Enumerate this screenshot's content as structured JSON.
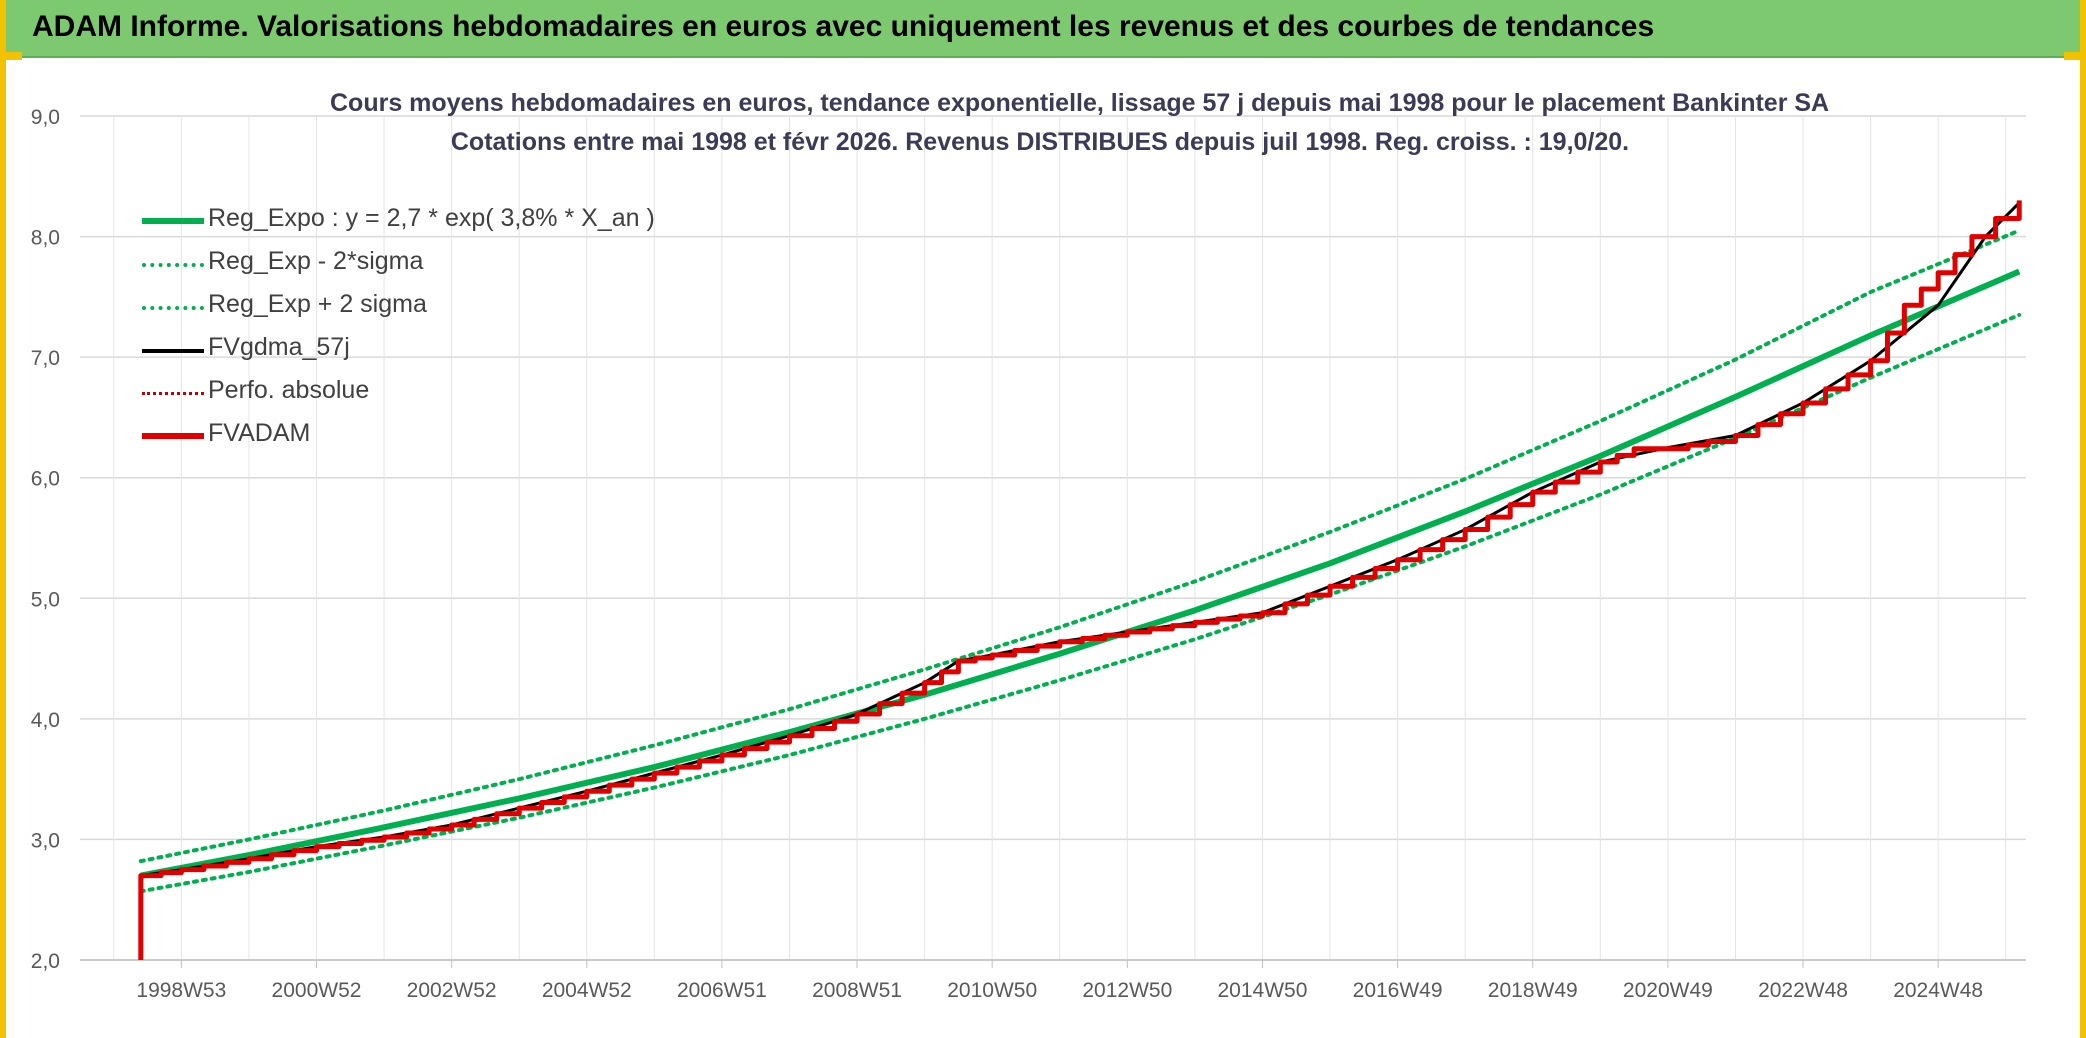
{
  "header": {
    "title": "ADAM Informe. Valorisations hebdomadaires en euros avec uniquement les revenus et des courbes de tendances"
  },
  "chart_data": {
    "type": "line",
    "title": "Cours moyens hebdomadaires en euros, tendance exponentielle, lissage 57 j depuis mai 1998 pour le placement Bankinter SA",
    "subtitle": "Cotations entre mai 1998 et févr 2026. Revenus DISTRIBUES depuis juil 1998. Reg. croiss. : 19,0/20.",
    "xlabel": "",
    "ylabel": "",
    "ylim": [
      2.0,
      9.0
    ],
    "xlim": [
      1997.5,
      2026.3
    ],
    "y_ticks": [
      "2,0",
      "3,0",
      "4,0",
      "5,0",
      "6,0",
      "7,0",
      "8,0",
      "9,0"
    ],
    "x_ticks": [
      {
        "label": "1998W53",
        "x": 1999.0
      },
      {
        "label": "2000W52",
        "x": 2001.0
      },
      {
        "label": "2002W52",
        "x": 2003.0
      },
      {
        "label": "2004W52",
        "x": 2005.0
      },
      {
        "label": "2006W51",
        "x": 2007.0
      },
      {
        "label": "2008W51",
        "x": 2009.0
      },
      {
        "label": "2010W50",
        "x": 2011.0
      },
      {
        "label": "2012W50",
        "x": 2013.0
      },
      {
        "label": "2014W50",
        "x": 2015.0
      },
      {
        "label": "2016W49",
        "x": 2017.0
      },
      {
        "label": "2018W49",
        "x": 2019.0
      },
      {
        "label": "2020W49",
        "x": 2021.0
      },
      {
        "label": "2022W48",
        "x": 2023.0
      },
      {
        "label": "2024W48",
        "x": 2025.0
      }
    ],
    "grid": true,
    "legend_position": "top-left",
    "series": [
      {
        "name": "Reg_Expo : y = 2,7 * exp( 3,8% *  X_an )",
        "color": "#00b050",
        "style": "solid-thick",
        "x": [
          1998.4,
          2000.0,
          2002.0,
          2004.0,
          2006.0,
          2008.0,
          2010.0,
          2012.0,
          2014.0,
          2016.0,
          2018.0,
          2020.0,
          2022.0,
          2024.0,
          2026.2
        ],
        "y": [
          2.7,
          2.87,
          3.1,
          3.34,
          3.6,
          3.89,
          4.2,
          4.54,
          4.9,
          5.29,
          5.72,
          6.18,
          6.67,
          7.18,
          7.71
        ]
      },
      {
        "name": "Reg_Exp - 2*sigma",
        "color": "#00b050",
        "style": "dotted",
        "x": [
          1998.4,
          2000.0,
          2002.0,
          2004.0,
          2006.0,
          2008.0,
          2010.0,
          2012.0,
          2014.0,
          2016.0,
          2018.0,
          2020.0,
          2022.0,
          2024.0,
          2026.2
        ],
        "y": [
          2.57,
          2.73,
          2.95,
          3.18,
          3.43,
          3.7,
          4.0,
          4.32,
          4.66,
          5.03,
          5.43,
          5.86,
          6.33,
          6.83,
          7.35
        ]
      },
      {
        "name": "Reg_Exp + 2 sigma",
        "color": "#00b050",
        "style": "dotted",
        "x": [
          1998.4,
          2000.0,
          2002.0,
          2004.0,
          2006.0,
          2008.0,
          2010.0,
          2012.0,
          2014.0,
          2016.0,
          2018.0,
          2020.0,
          2022.0,
          2024.0,
          2026.2
        ],
        "y": [
          2.82,
          3.0,
          3.24,
          3.5,
          3.78,
          4.08,
          4.41,
          4.76,
          5.14,
          5.55,
          5.99,
          6.47,
          6.98,
          7.54,
          8.05
        ]
      },
      {
        "name": "FVgdma_57j",
        "color": "#000000",
        "style": "solid",
        "x": [
          1998.4,
          1998.4,
          1999.0,
          2000.0,
          2001.0,
          2002.0,
          2003.0,
          2004.0,
          2005.0,
          2006.0,
          2007.0,
          2008.0,
          2009.0,
          2010.0,
          2010.5,
          2011.0,
          2012.0,
          2013.0,
          2014.0,
          2015.0,
          2016.0,
          2017.0,
          2018.0,
          2019.0,
          2020.0,
          2021.0,
          2022.0,
          2023.0,
          2024.0,
          2025.0,
          2025.7,
          2026.2
        ],
        "y": [
          2.0,
          2.7,
          2.75,
          2.84,
          2.94,
          3.02,
          3.12,
          3.26,
          3.4,
          3.55,
          3.7,
          3.86,
          4.04,
          4.3,
          4.48,
          4.53,
          4.64,
          4.72,
          4.8,
          4.88,
          5.1,
          5.32,
          5.57,
          5.88,
          6.13,
          6.25,
          6.35,
          6.62,
          6.97,
          7.43,
          8.0,
          8.28
        ]
      },
      {
        "name": "Perfo. absolue",
        "color": "#c00000",
        "style": "dotted",
        "x": [],
        "y": []
      },
      {
        "name": "FVADAM",
        "color": "#e00000",
        "style": "step-thick",
        "x": [
          1998.4,
          1998.4,
          1999.0,
          2000.0,
          2001.0,
          2002.0,
          2003.0,
          2004.0,
          2005.0,
          2006.0,
          2007.0,
          2008.0,
          2009.0,
          2010.0,
          2010.5,
          2011.0,
          2012.0,
          2013.0,
          2014.0,
          2015.0,
          2016.0,
          2017.0,
          2018.0,
          2019.0,
          2020.0,
          2020.5,
          2021.0,
          2021.6,
          2022.0,
          2023.0,
          2024.0,
          2024.5,
          2025.0,
          2025.5,
          2026.2
        ],
        "y": [
          2.0,
          2.7,
          2.75,
          2.84,
          2.94,
          3.02,
          3.12,
          3.26,
          3.4,
          3.55,
          3.7,
          3.86,
          4.04,
          4.3,
          4.48,
          4.53,
          4.64,
          4.72,
          4.8,
          4.88,
          5.1,
          5.32,
          5.57,
          5.88,
          6.13,
          6.24,
          6.24,
          6.3,
          6.35,
          6.62,
          6.97,
          7.43,
          7.7,
          8.0,
          8.3
        ]
      }
    ]
  }
}
